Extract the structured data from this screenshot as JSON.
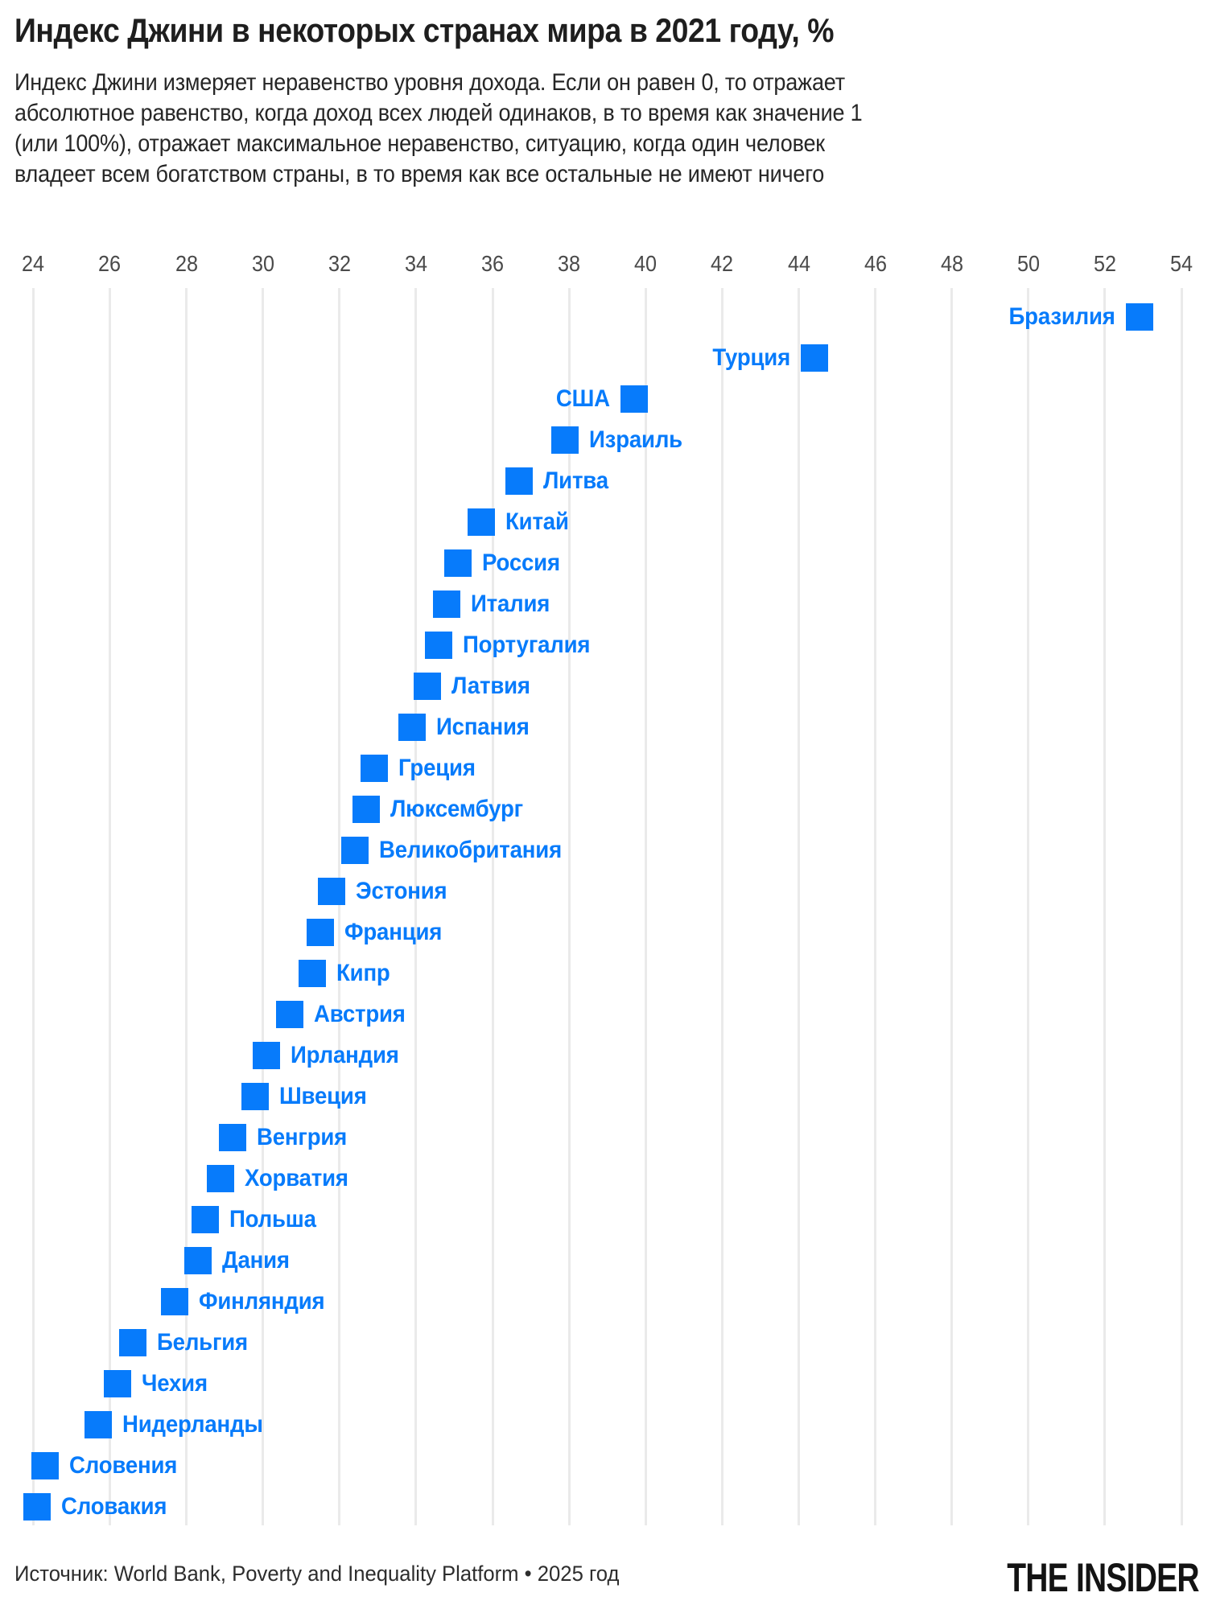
{
  "header": {
    "title": "Индекс Джини в некоторых странах мира в 2021 году, %",
    "subtitle_lines": [
      "Индекс Джини измеряет неравенство уровня дохода. Если он равен 0, то отражает",
      "абсолютное равенство, когда доход всех людей одинаков, в то время как значение 1",
      "(или 100%), отражает максимальное неравенство, ситуацию, когда один человек",
      "владеет всем богатством страны, в то время как все остальные не имеют ничего"
    ]
  },
  "chart_data": {
    "type": "scatter",
    "title": "Индекс Джини в некоторых странах мира в 2021 году, %",
    "xlabel": "",
    "ylabel": "",
    "legend": null,
    "grid": true,
    "tick_position": "top",
    "marker_shape": "square",
    "marker_color": "#077bfb",
    "axis": {
      "min": 24,
      "max": 54,
      "tick_step": 2,
      "ticks": [
        24,
        26,
        28,
        30,
        32,
        34,
        36,
        38,
        40,
        42,
        44,
        46,
        48,
        50,
        52,
        54
      ]
    },
    "points": [
      {
        "label": "Бразилия",
        "value": 52.9,
        "label_side": "left"
      },
      {
        "label": "Турция",
        "value": 44.4,
        "label_side": "left"
      },
      {
        "label": "США",
        "value": 39.7,
        "label_side": "left"
      },
      {
        "label": "Израиль",
        "value": 37.9,
        "label_side": "right"
      },
      {
        "label": "Литва",
        "value": 36.7,
        "label_side": "right"
      },
      {
        "label": "Китай",
        "value": 35.7,
        "label_side": "right"
      },
      {
        "label": "Россия",
        "value": 35.1,
        "label_side": "right"
      },
      {
        "label": "Италия",
        "value": 34.8,
        "label_side": "right"
      },
      {
        "label": "Португалия",
        "value": 34.6,
        "label_side": "right"
      },
      {
        "label": "Латвия",
        "value": 34.3,
        "label_side": "right"
      },
      {
        "label": "Испания",
        "value": 33.9,
        "label_side": "right"
      },
      {
        "label": "Греция",
        "value": 32.9,
        "label_side": "right"
      },
      {
        "label": "Люксембург",
        "value": 32.7,
        "label_side": "right"
      },
      {
        "label": "Великобритания",
        "value": 32.4,
        "label_side": "right"
      },
      {
        "label": "Эстония",
        "value": 31.8,
        "label_side": "right"
      },
      {
        "label": "Франция",
        "value": 31.5,
        "label_side": "right"
      },
      {
        "label": "Кипр",
        "value": 31.3,
        "label_side": "right"
      },
      {
        "label": "Австрия",
        "value": 30.7,
        "label_side": "right"
      },
      {
        "label": "Ирландия",
        "value": 30.1,
        "label_side": "right"
      },
      {
        "label": "Швеция",
        "value": 29.8,
        "label_side": "right"
      },
      {
        "label": "Венгрия",
        "value": 29.2,
        "label_side": "right"
      },
      {
        "label": "Хорватия",
        "value": 28.9,
        "label_side": "right"
      },
      {
        "label": "Польша",
        "value": 28.5,
        "label_side": "right"
      },
      {
        "label": "Дания",
        "value": 28.3,
        "label_side": "right"
      },
      {
        "label": "Финляндия",
        "value": 27.7,
        "label_side": "right"
      },
      {
        "label": "Бельгия",
        "value": 26.6,
        "label_side": "right"
      },
      {
        "label": "Чехия",
        "value": 26.2,
        "label_side": "right"
      },
      {
        "label": "Нидерланды",
        "value": 25.7,
        "label_side": "right"
      },
      {
        "label": "Словения",
        "value": 24.3,
        "label_side": "right"
      },
      {
        "label": "Словакия",
        "value": 24.1,
        "label_side": "right"
      }
    ]
  },
  "footer": {
    "source": "Источник: World Bank, Poverty and Inequality Platform • 2025 год",
    "logo": "THE INSIDER"
  }
}
